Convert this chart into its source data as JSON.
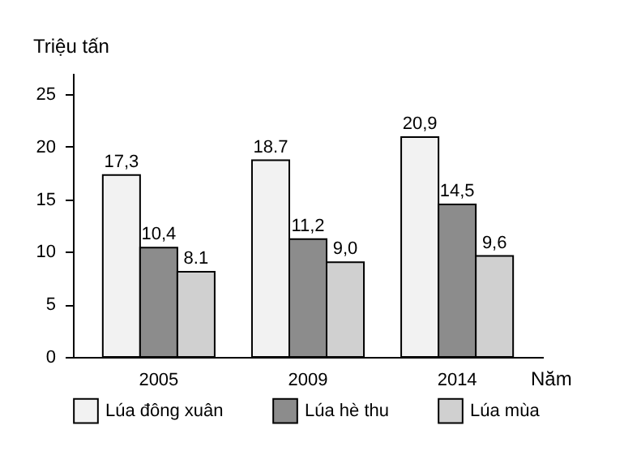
{
  "chart_data": {
    "type": "bar",
    "ylabel": "Triệu tấn",
    "xlabel": "Năm",
    "categories": [
      "2005",
      "2009",
      "2014"
    ],
    "series": [
      {
        "name": "Lúa đông xuân",
        "color": "#f2f2f2",
        "values": [
          17.3,
          18.7,
          20.9
        ],
        "value_labels": [
          "17,3",
          "18.7",
          "20,9"
        ]
      },
      {
        "name": "Lúa hè thu",
        "color": "#8c8c8c",
        "values": [
          10.4,
          11.2,
          14.5
        ],
        "value_labels": [
          "10,4",
          "11,2",
          "14,5"
        ]
      },
      {
        "name": "Lúa mùa",
        "color": "#d0d0d0",
        "values": [
          8.1,
          9.0,
          9.6
        ],
        "value_labels": [
          "8.1",
          "9,0",
          "9,6"
        ]
      }
    ],
    "ylim": [
      0,
      27
    ],
    "yticks": [
      0,
      5,
      10,
      15,
      20,
      25
    ],
    "grid": false,
    "legend": "bottom"
  }
}
